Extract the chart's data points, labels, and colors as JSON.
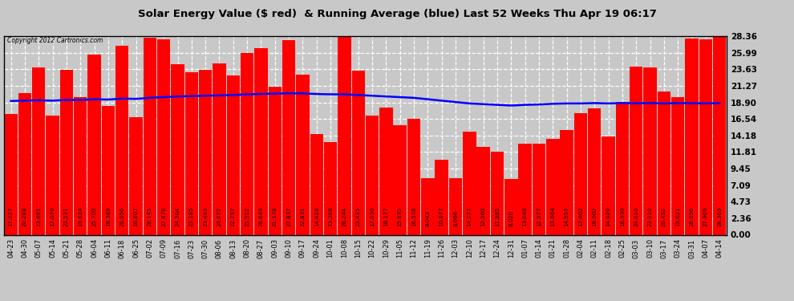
{
  "title": "Solar Energy Value ($ red)  & Running Average (blue) Last 52 Weeks Thu Apr 19 06:17",
  "copyright": "Copyright 2012 Cartronics.com",
  "bar_color": "#FF0000",
  "line_color": "#0000FF",
  "background_color": "#C8C8C8",
  "plot_bg_color": "#C8C8C8",
  "ylim": [
    0,
    28.36
  ],
  "yticks": [
    0.0,
    2.36,
    4.73,
    7.09,
    9.45,
    11.81,
    14.18,
    16.54,
    18.9,
    21.27,
    23.63,
    25.99,
    28.36
  ],
  "dates": [
    "04-23",
    "04-30",
    "05-07",
    "05-14",
    "05-21",
    "05-28",
    "06-04",
    "06-11",
    "06-18",
    "06-25",
    "07-02",
    "07-09",
    "07-16",
    "07-23",
    "07-30",
    "08-06",
    "08-13",
    "08-20",
    "08-27",
    "09-03",
    "09-10",
    "09-17",
    "09-24",
    "10-01",
    "10-08",
    "10-15",
    "10-22",
    "10-29",
    "11-05",
    "11-12",
    "11-19",
    "11-26",
    "12-03",
    "12-10",
    "12-17",
    "12-24",
    "12-31",
    "01-07",
    "01-14",
    "01-21",
    "01-28",
    "02-04",
    "02-11",
    "02-18",
    "02-25",
    "03-03",
    "03-10",
    "03-17",
    "03-24",
    "03-31",
    "04-07",
    "04-14"
  ],
  "values": [
    17.227,
    20.268,
    23.881,
    17.07,
    23.531,
    19.624,
    25.709,
    18.389,
    26.956,
    16.807,
    28.145,
    27.876,
    24.364,
    23.185,
    23.493,
    24.472,
    22.797,
    25.912,
    26.649,
    21.178,
    27.837,
    22.831,
    14.418,
    13.268,
    28.244,
    23.435,
    17.03,
    18.177,
    15.655,
    16.578,
    8.043,
    10.677,
    8.066,
    14.777,
    12.56,
    11.885,
    8.02,
    13.04,
    12.977,
    13.664,
    14.957,
    17.402,
    18.002,
    14.02,
    18.93,
    24.01,
    23.91,
    20.452,
    19.621,
    28.056,
    27.906,
    28.36
  ],
  "running_avg": [
    19.1,
    19.15,
    19.2,
    19.15,
    19.25,
    19.25,
    19.35,
    19.3,
    19.45,
    19.4,
    19.55,
    19.65,
    19.75,
    19.8,
    19.85,
    19.9,
    19.95,
    20.05,
    20.1,
    20.15,
    20.2,
    20.18,
    20.1,
    20.05,
    20.05,
    19.95,
    19.85,
    19.75,
    19.65,
    19.55,
    19.35,
    19.15,
    18.95,
    18.75,
    18.65,
    18.55,
    18.45,
    18.55,
    18.6,
    18.7,
    18.75,
    18.75,
    18.8,
    18.75,
    18.8,
    18.78,
    18.8,
    18.75,
    18.8,
    18.78,
    18.75,
    18.8
  ],
  "label_fontsize": 5.0,
  "title_fontsize": 9.5,
  "xtick_fontsize": 6.0,
  "ytick_fontsize": 7.5
}
